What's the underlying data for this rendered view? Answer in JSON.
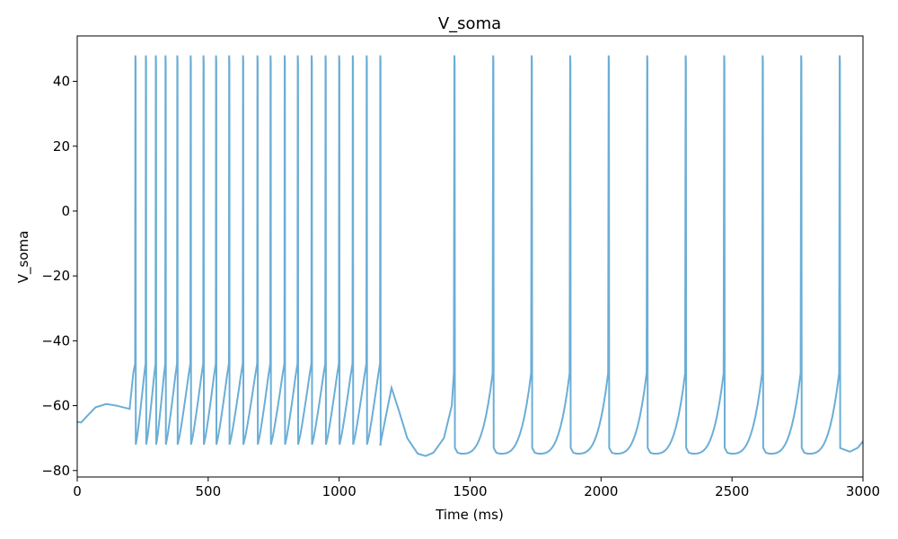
{
  "chart_data": {
    "type": "line",
    "title": "V_soma",
    "xlabel": "Time (ms)",
    "ylabel": "V_soma",
    "xlim": [
      0,
      3000
    ],
    "ylim": [
      -82,
      54
    ],
    "xticks": [
      0,
      500,
      1000,
      1500,
      2000,
      2500,
      3000
    ],
    "yticks": [
      -80,
      -60,
      -40,
      -20,
      0,
      20,
      40
    ],
    "xtick_labels": [
      "0",
      "500",
      "1000",
      "1500",
      "2000",
      "2500",
      "3000"
    ],
    "ytick_labels": [
      "−80",
      "−60",
      "−40",
      "−20",
      "0",
      "20",
      "40"
    ],
    "grid": false,
    "line_color": "#6baed6",
    "series": [
      {
        "description_points": {
          "initial": [
            [
              0,
              -65
            ],
            [
              15,
              -65.2
            ],
            [
              40,
              -63
            ],
            [
              70,
              -60.5
            ],
            [
              110,
              -59.5
            ],
            [
              150,
              -60
            ],
            [
              200,
              -61
            ]
          ],
          "burst_spike_times": [
            222,
            262,
            300,
            337,
            382,
            433,
            482,
            530,
            580,
            633,
            688,
            738,
            792,
            842,
            895,
            948,
            1000,
            1052,
            1105,
            1157
          ],
          "burst_spike_peak": 48,
          "burst_reset": -72,
          "burst_threshold": -47,
          "after_burst": [
            [
              1157,
              -72
            ],
            [
              1200,
              -54.5
            ],
            [
              1230,
              -62
            ],
            [
              1260,
              -70
            ],
            [
              1300,
              -74.8
            ],
            [
              1330,
              -75.5
            ],
            [
              1360,
              -74.5
            ],
            [
              1400,
              -70
            ],
            [
              1430,
              -60
            ]
          ],
          "tonic_spike_times": [
            1440,
            1588,
            1735,
            1882,
            2029,
            2176,
            2323,
            2470,
            2617,
            2764,
            2911
          ],
          "tonic_spike_peak": 48,
          "tonic_reset": -73,
          "tonic_trough": -74.5,
          "end": [
            [
              2911,
              -73
            ],
            [
              2950,
              -74.2
            ],
            [
              2980,
              -73
            ],
            [
              3000,
              -71
            ]
          ]
        }
      }
    ]
  }
}
